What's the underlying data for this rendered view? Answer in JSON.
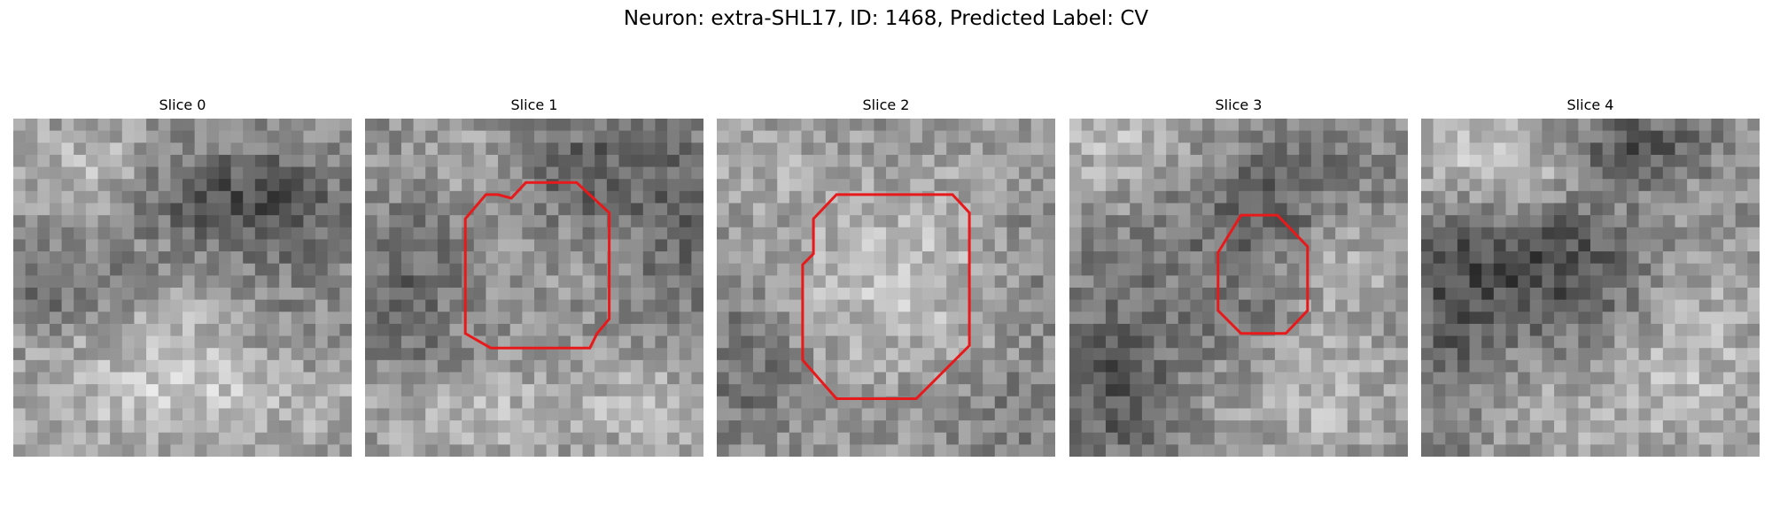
{
  "figure": {
    "title": "Neuron: extra-SHL17, ID: 1468, Predicted Label: CV"
  },
  "panels": [
    {
      "title": "Slice 0",
      "has_contour": false
    },
    {
      "title": "Slice 1",
      "has_contour": true
    },
    {
      "title": "Slice 2",
      "has_contour": true
    },
    {
      "title": "Slice 3",
      "has_contour": true
    },
    {
      "title": "Slice 4",
      "has_contour": false
    }
  ],
  "colors": {
    "contour": "#e8191a"
  }
}
